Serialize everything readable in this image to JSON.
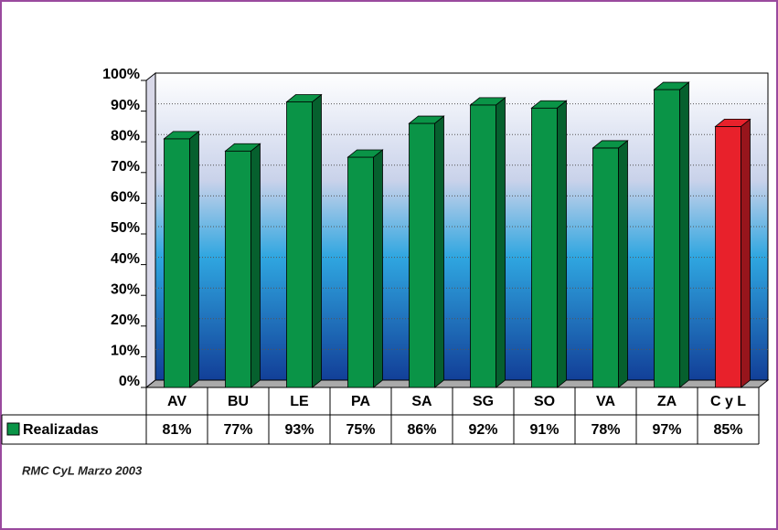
{
  "chart_data": {
    "type": "bar",
    "categories": [
      "AV",
      "BU",
      "LE",
      "PA",
      "SA",
      "SG",
      "SO",
      "VA",
      "ZA",
      "C y L"
    ],
    "series": [
      {
        "name": "Realizadas",
        "color": "#0a9447",
        "colors": [
          "#0a9447",
          "#0a9447",
          "#0a9447",
          "#0a9447",
          "#0a9447",
          "#0a9447",
          "#0a9447",
          "#0a9447",
          "#0a9447",
          "#e8212b"
        ],
        "values": [
          81,
          77,
          93,
          75,
          86,
          92,
          91,
          78,
          97,
          85
        ],
        "value_labels": [
          "81%",
          "77%",
          "93%",
          "75%",
          "86%",
          "92%",
          "91%",
          "78%",
          "97%",
          "85%"
        ]
      }
    ],
    "ylim": [
      0,
      100
    ],
    "yticks": [
      {
        "value": 0,
        "label": "0%"
      },
      {
        "value": 10,
        "label": "10%"
      },
      {
        "value": 20,
        "label": "20%"
      },
      {
        "value": 30,
        "label": "30%"
      },
      {
        "value": 40,
        "label": "40%"
      },
      {
        "value": 50,
        "label": "50%"
      },
      {
        "value": 60,
        "label": "60%"
      },
      {
        "value": 70,
        "label": "70%"
      },
      {
        "value": 80,
        "label": "80%"
      },
      {
        "value": 90,
        "label": "90%"
      },
      {
        "value": 100,
        "label": "100%"
      }
    ],
    "grid": true,
    "caption": "RMC CyL Marzo 2003"
  }
}
